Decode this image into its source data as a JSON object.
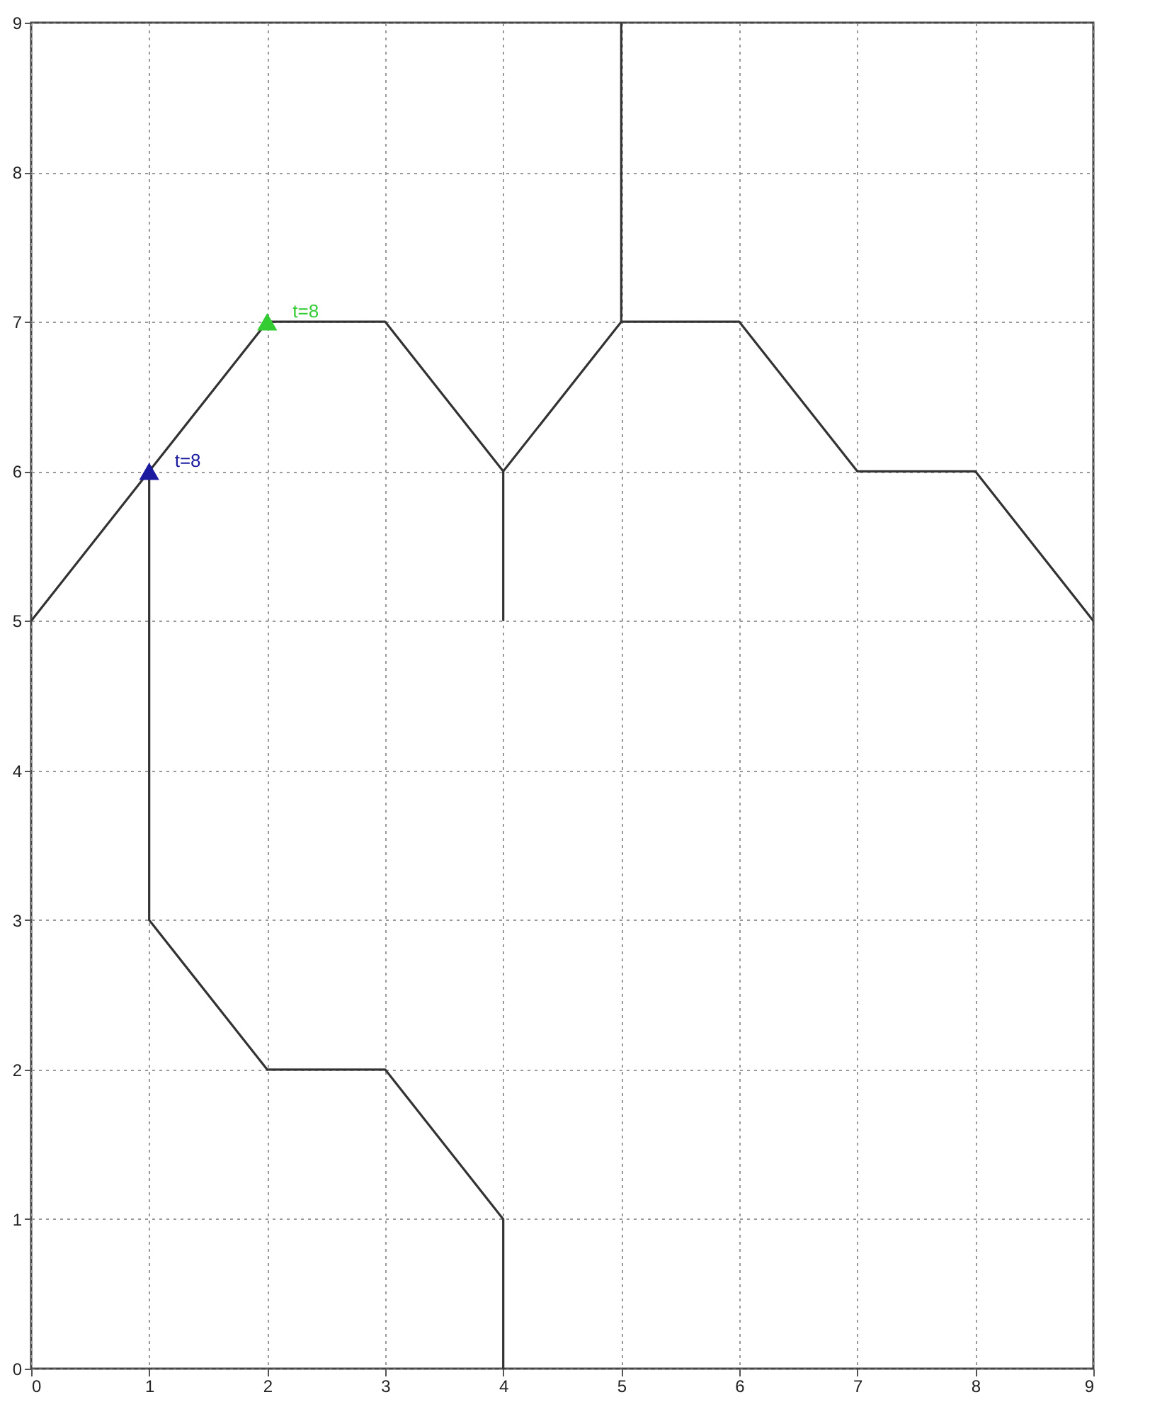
{
  "chart_data": {
    "type": "line",
    "xlim": [
      0,
      9
    ],
    "ylim": [
      0,
      9
    ],
    "xticks": [
      0,
      1,
      2,
      3,
      4,
      5,
      6,
      7,
      8,
      9
    ],
    "yticks": [
      0,
      1,
      2,
      3,
      4,
      5,
      6,
      7,
      8,
      9
    ],
    "grid": true,
    "marker": "none",
    "line_style": "solid",
    "series": [
      {
        "color": "#333333",
        "x": [
          0,
          1,
          2,
          3,
          4,
          5,
          6,
          7,
          8,
          9
        ],
        "values": [
          5,
          6,
          7,
          7,
          6,
          7,
          7,
          6,
          6,
          5
        ]
      },
      {
        "color": "#333333",
        "x": [
          1,
          1,
          2,
          3,
          4,
          4
        ],
        "values": [
          6,
          3,
          2,
          2,
          1,
          0
        ]
      },
      {
        "color": "#333333",
        "x": [
          4,
          4
        ],
        "values": [
          6,
          5
        ]
      },
      {
        "color": "#333333",
        "x": [
          5,
          5
        ],
        "values": [
          7,
          9
        ]
      },
      {
        "type": "scatter",
        "marker": "triangle",
        "color": "#1a1aa0",
        "x": [
          1
        ],
        "values": [
          6
        ]
      },
      {
        "type": "scatter",
        "marker": "triangle",
        "color": "#33cc33",
        "x": [
          2
        ],
        "values": [
          7
        ]
      }
    ],
    "annotations": [
      {
        "text": "t=8",
        "x": 1,
        "y": 6
      },
      {
        "text": "t=8",
        "x": 2,
        "y": 7
      }
    ]
  }
}
